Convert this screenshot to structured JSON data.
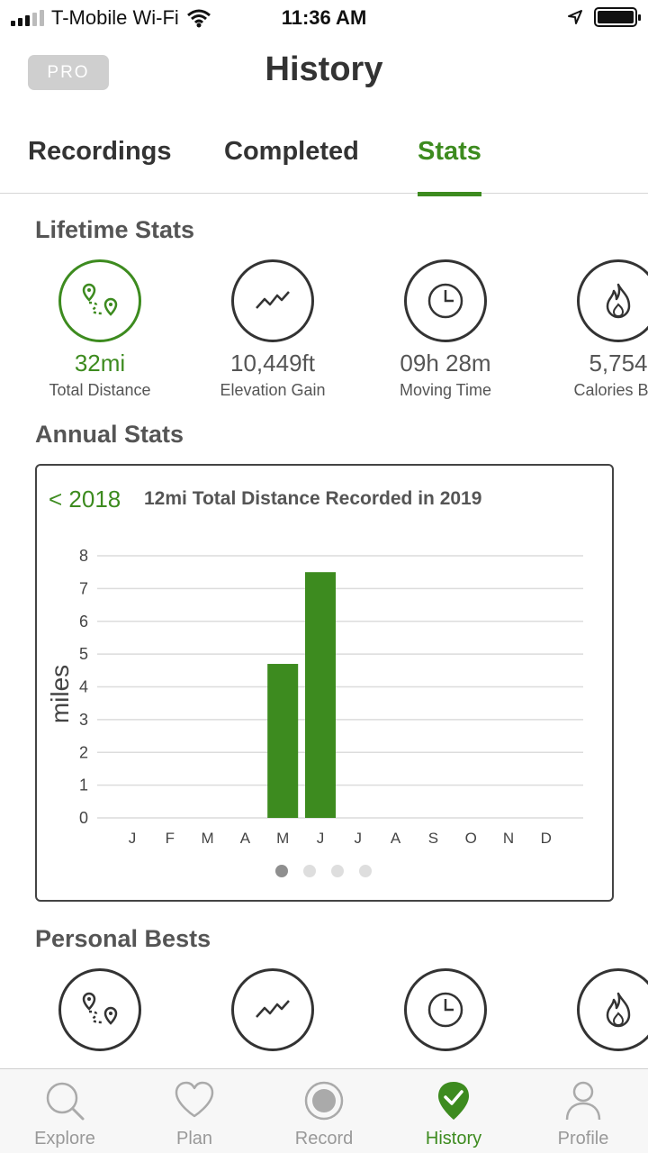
{
  "status_bar": {
    "carrier": "T-Mobile Wi-Fi",
    "time": "11:36 AM"
  },
  "header": {
    "pro_label": "PRO",
    "title": "History"
  },
  "tabs": [
    {
      "label": "Recordings",
      "active": false
    },
    {
      "label": "Completed",
      "active": false
    },
    {
      "label": "Stats",
      "active": true
    }
  ],
  "lifetime": {
    "title": "Lifetime Stats",
    "stats": [
      {
        "value": "32mi",
        "label": "Total Distance",
        "icon": "route-icon"
      },
      {
        "value": "10,449ft",
        "label": "Elevation Gain",
        "icon": "elevation-icon"
      },
      {
        "value": "09h 28m",
        "label": "Moving Time",
        "icon": "clock-icon"
      },
      {
        "value": "5,754",
        "label": "Calories Bur",
        "icon": "flame-icon"
      }
    ]
  },
  "annual": {
    "title": "Annual Stats",
    "prev_year": "< 2018",
    "summary": "12mi Total Distance Recorded in 2019"
  },
  "chart_data": {
    "type": "bar",
    "categories": [
      "J",
      "F",
      "M",
      "A",
      "M",
      "J",
      "J",
      "A",
      "S",
      "O",
      "N",
      "D"
    ],
    "values": [
      0,
      0,
      0,
      0,
      4.7,
      7.5,
      0,
      0,
      0,
      0,
      0,
      0
    ],
    "ylabel": "miles",
    "ylim": [
      0,
      8
    ],
    "yticks": [
      "0",
      "1",
      "2",
      "3",
      "4",
      "5",
      "6",
      "7",
      "8"
    ],
    "grid": true,
    "bar_color": "#3d8b1f"
  },
  "pager": {
    "count": 4,
    "active": 0
  },
  "personal_bests": {
    "title": "Personal Bests"
  },
  "bottom_nav": [
    {
      "label": "Explore",
      "icon": "search-icon",
      "active": false
    },
    {
      "label": "Plan",
      "icon": "heart-icon",
      "active": false
    },
    {
      "label": "Record",
      "icon": "record-icon",
      "active": false
    },
    {
      "label": "History",
      "icon": "check-badge-icon",
      "active": true
    },
    {
      "label": "Profile",
      "icon": "person-icon",
      "active": false
    }
  ],
  "colors": {
    "accent": "#3d8b1f",
    "text": "#333333",
    "muted": "#999999"
  }
}
